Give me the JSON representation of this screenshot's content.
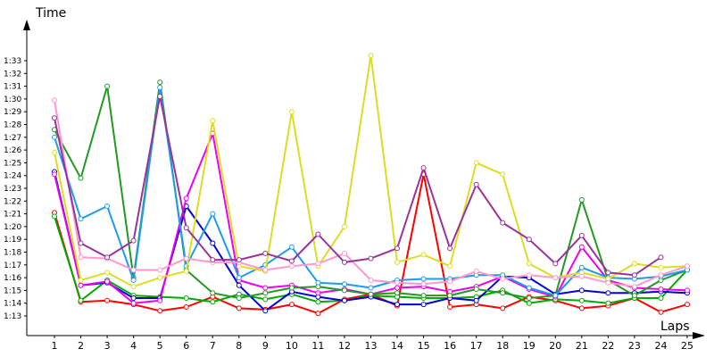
{
  "chart_data": {
    "type": "line",
    "xlabel": "Laps",
    "ylabel": "Time",
    "x": [
      1,
      2,
      3,
      4,
      5,
      6,
      7,
      8,
      9,
      10,
      11,
      12,
      13,
      14,
      15,
      16,
      17,
      18,
      19,
      20,
      21,
      22,
      23,
      24,
      25
    ],
    "xlim": [
      1,
      25
    ],
    "ylim": [
      72,
      95
    ],
    "y_ticks": [
      "1:13",
      "1:14",
      "1:15",
      "1:16",
      "1:17",
      "1:18",
      "1:19",
      "1:20",
      "1:21",
      "1:22",
      "1:23",
      "1:24",
      "1:25",
      "1:26",
      "1:27",
      "1:28",
      "1:29",
      "1:30",
      "1:31",
      "1:32",
      "1:33"
    ],
    "grid": false,
    "series": [
      {
        "color": "#ff0000",
        "values": [
          81.1,
          74.1,
          74.2,
          73.9,
          73.4,
          73.7,
          74.5,
          73.6,
          73.5,
          73.9,
          73.2,
          74.3,
          74.7,
          73.8,
          84.1,
          73.7,
          73.9,
          73.6,
          74.5,
          74.2,
          73.6,
          73.8,
          74.4,
          73.3,
          73.9
        ]
      },
      {
        "color": "#00aa00",
        "values": [
          80.8,
          74.2,
          75.8,
          74.6,
          74.5,
          74.4,
          74.1,
          74.7,
          74.3,
          74.7,
          74.1,
          74.2,
          74.6,
          74.5,
          74.4,
          74.4,
          74.5,
          75.0,
          74.0,
          74.3,
          74.2,
          74.0,
          74.4,
          74.4,
          76.6
        ]
      },
      {
        "color": "#0000dd",
        "values": [
          84.3,
          75.4,
          75.6,
          74.4,
          74.4,
          81.6,
          78.7,
          75.4,
          73.4,
          74.9,
          74.5,
          74.2,
          74.5,
          73.9,
          73.9,
          74.4,
          74.2,
          76.1,
          76.0,
          74.7,
          75.0,
          74.8,
          74.8,
          74.9,
          74.8
        ]
      },
      {
        "color": "#ee00ee",
        "values": [
          84.1,
          75.4,
          75.7,
          74.0,
          74.2,
          82.2,
          87.3,
          75.8,
          75.2,
          75.4,
          74.8,
          75.1,
          74.7,
          75.2,
          75.3,
          74.9,
          75.3,
          76.1,
          75.1,
          74.5,
          78.4,
          75.8,
          75.2,
          75.1,
          75.0
        ]
      },
      {
        "color": "#229922",
        "values": [
          87.6,
          83.8,
          91.0,
          76.0,
          91.3,
          76.6,
          74.8,
          74.4,
          74.8,
          75.2,
          75.3,
          75.0,
          74.7,
          74.8,
          74.6,
          74.6,
          75.1,
          74.8,
          74.4,
          74.6,
          82.1,
          75.8,
          74.6,
          75.8,
          76.6
        ]
      },
      {
        "color": "#1e9bf0",
        "values": [
          87.0,
          80.6,
          81.6,
          75.8,
          90.9,
          76.9,
          81.0,
          76.0,
          77.0,
          78.4,
          75.6,
          75.5,
          75.2,
          75.8,
          75.9,
          75.9,
          76.2,
          76.2,
          75.2,
          74.6,
          76.8,
          76.0,
          75.9,
          76.1,
          76.6
        ]
      },
      {
        "color": "#dddd22",
        "values": [
          85.8,
          75.8,
          76.4,
          75.3,
          76.0,
          76.5,
          88.3,
          76.9,
          76.5,
          89.0,
          76.9,
          80.0,
          93.4,
          77.2,
          77.8,
          76.9,
          85.0,
          84.1,
          77.1,
          76.0,
          76.4,
          75.9,
          77.1,
          76.8,
          76.9
        ]
      },
      {
        "color": "#ff99cc",
        "values": [
          89.9,
          77.6,
          77.5,
          76.6,
          76.6,
          77.5,
          77.2,
          77.2,
          76.6,
          76.9,
          77.1,
          77.9,
          75.8,
          75.6,
          75.5,
          75.7,
          76.5,
          75.9,
          76.2,
          76.0,
          76.1,
          75.6,
          75.3,
          76.2,
          76.9
        ]
      },
      {
        "color": "#993399",
        "values": [
          88.5,
          78.7,
          77.6,
          78.9,
          90.2,
          79.9,
          77.4,
          77.4,
          77.9,
          77.3,
          79.4,
          77.2,
          77.5,
          78.3,
          84.6,
          78.3,
          83.3,
          80.3,
          79.0,
          77.1,
          79.3,
          76.4,
          76.2,
          77.6,
          null
        ]
      }
    ]
  }
}
